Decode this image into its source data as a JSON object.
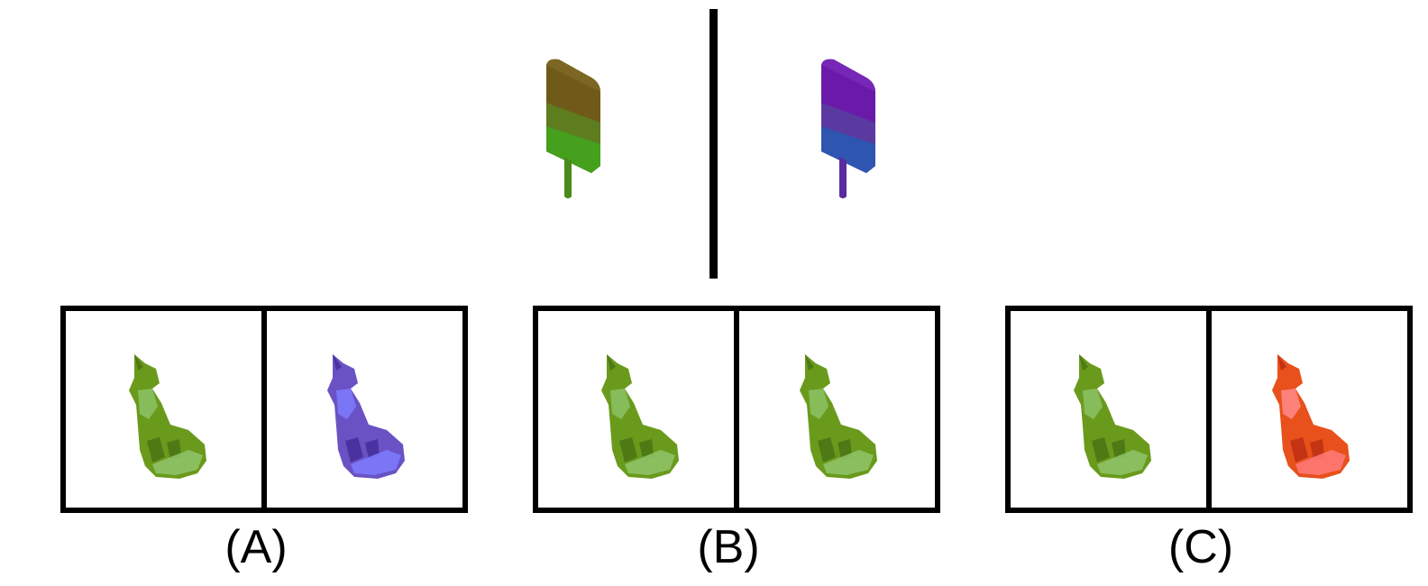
{
  "example": {
    "source_object": "popsicle",
    "source_colors": [
      "#6f5a1a",
      "#5a7a1c",
      "#3f9a1c",
      "#4a8a1a"
    ],
    "target_colors": [
      "#6a1aa8",
      "#5a3aa0",
      "#2e56b0",
      "#5a2aa0"
    ]
  },
  "options": [
    {
      "label": "(A)",
      "left_color": "green",
      "right_color": "purple"
    },
    {
      "label": "(B)",
      "left_color": "green",
      "right_color": "green"
    },
    {
      "label": "(C)",
      "left_color": "green",
      "right_color": "red"
    }
  ],
  "palette": {
    "green": {
      "body": "#6a9a1c",
      "shade": "#4d7a14",
      "light": "#8fc46a"
    },
    "purple": {
      "body": "#6a52c4",
      "shade": "#4a32a0",
      "light": "#7c7cff"
    },
    "red": {
      "body": "#e8501c",
      "shade": "#c23414",
      "light": "#ff7a7a"
    }
  }
}
